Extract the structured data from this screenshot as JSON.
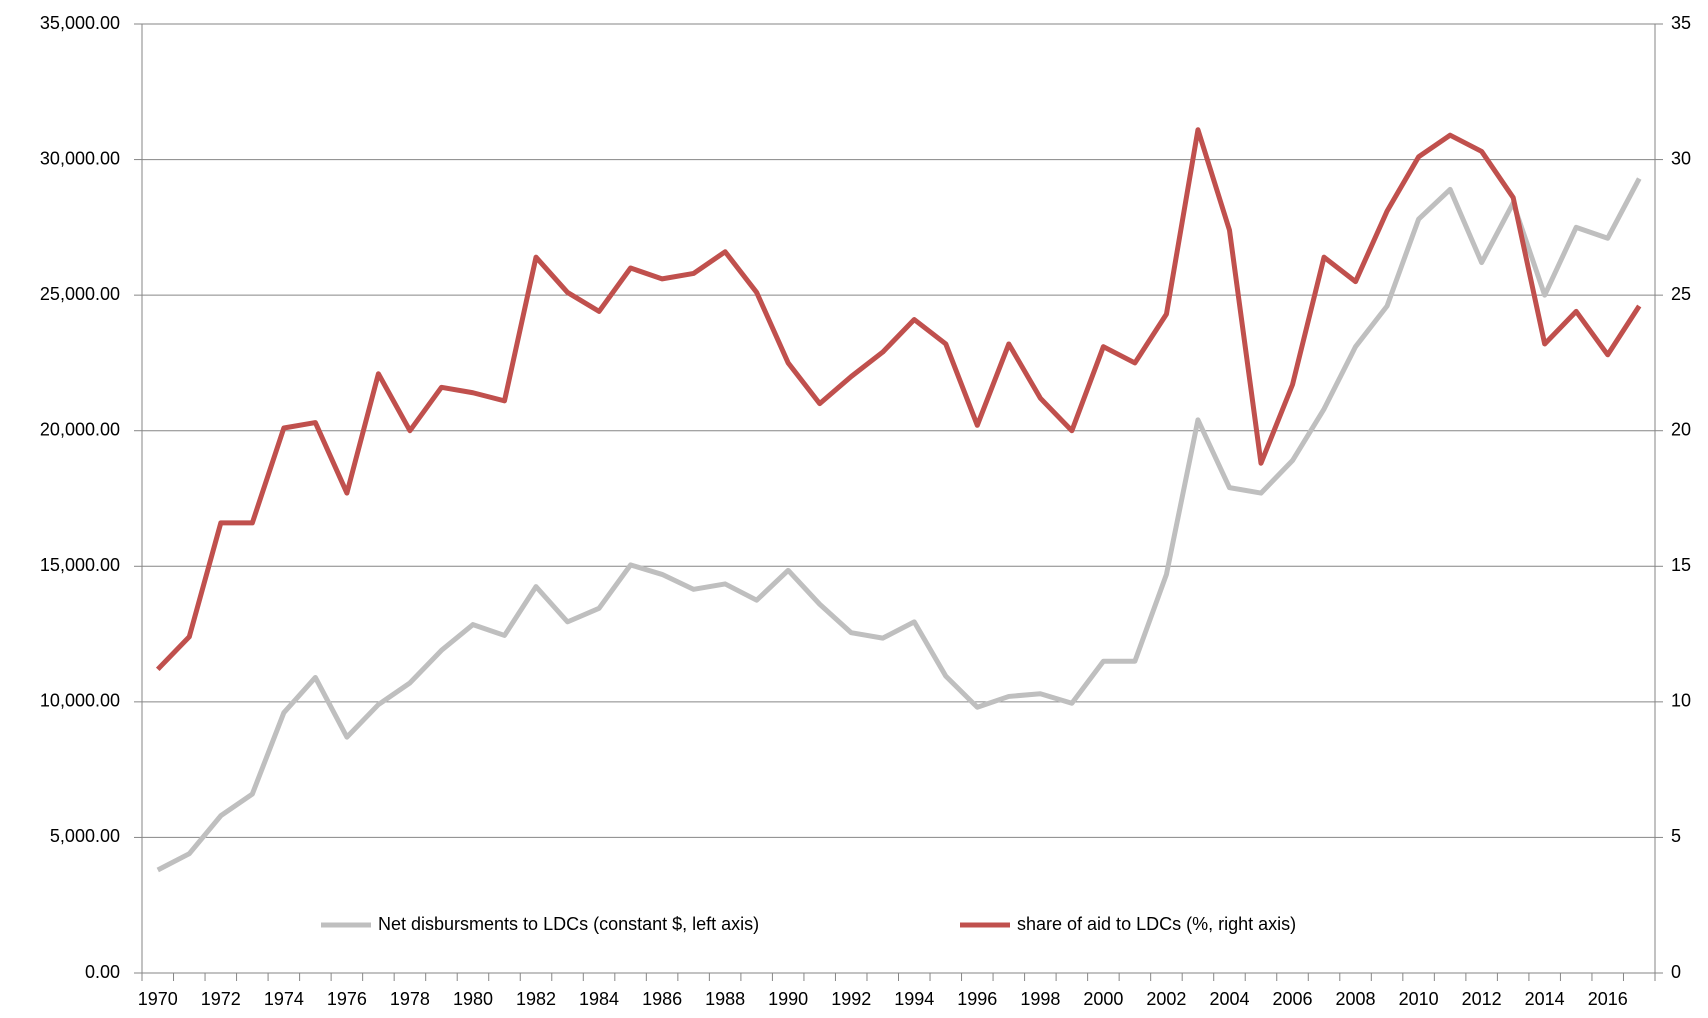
{
  "chart_data": {
    "type": "line",
    "categories": [
      "1970",
      null,
      "1972",
      null,
      "1974",
      null,
      "1976",
      null,
      "1978",
      null,
      "1980",
      null,
      "1982",
      null,
      "1984",
      null,
      "1986",
      null,
      "1988",
      null,
      "1990",
      null,
      "1992",
      null,
      "1994",
      null,
      "1996",
      null,
      "1998",
      null,
      "2000",
      null,
      "2002",
      null,
      "2004",
      null,
      "2006",
      null,
      "2008",
      null,
      "2010",
      null,
      "2012",
      null,
      "2014",
      null,
      "2016",
      null
    ],
    "series": [
      {
        "name": "Net disbursments to LDCs (constant $, left axis)",
        "color": "#bfbfbf",
        "values": [
          3800,
          4400,
          5800,
          6600,
          9600,
          10900,
          8700,
          9900,
          10700,
          11900,
          12850,
          12450,
          14250,
          12950,
          13450,
          15050,
          14700,
          14150,
          14350,
          13750,
          14850,
          13600,
          12550,
          12350,
          12950,
          10950,
          9800,
          10200,
          10300,
          9950,
          11500,
          11500,
          14700,
          20400,
          17900,
          17700,
          18900,
          20800,
          23100,
          24600,
          27800,
          28900,
          26200,
          28400,
          25000,
          27500,
          27100,
          29300
        ]
      },
      {
        "name": "share of aid to LDCs (%, right axis)",
        "color": "#c0504d",
        "axis": "y2",
        "values": [
          11.2,
          12.4,
          16.6,
          16.6,
          20.1,
          20.3,
          17.7,
          22.1,
          20.0,
          21.6,
          21.4,
          21.1,
          26.4,
          25.1,
          24.4,
          26.0,
          25.6,
          25.8,
          26.6,
          25.1,
          22.5,
          21.0,
          22.0,
          22.9,
          24.1,
          23.2,
          20.2,
          23.2,
          21.2,
          20.0,
          23.1,
          22.5,
          24.3,
          31.1,
          27.4,
          18.8,
          21.7,
          26.4,
          25.5,
          28.1,
          30.1,
          30.9,
          30.3,
          28.6,
          23.2,
          24.4,
          22.8,
          24.6
        ]
      }
    ],
    "ylim": [
      0,
      35000
    ],
    "yticks": [
      {
        "value": 0,
        "label": "0.00"
      },
      {
        "value": 5000,
        "label": "5,000.00"
      },
      {
        "value": 10000,
        "label": "10,000.00"
      },
      {
        "value": 15000,
        "label": "15,000.00"
      },
      {
        "value": 20000,
        "label": "20,000.00"
      },
      {
        "value": 25000,
        "label": "25,000.00"
      },
      {
        "value": 30000,
        "label": "30,000.00"
      },
      {
        "value": 35000,
        "label": "35,000.00"
      }
    ],
    "y2lim": [
      0,
      35
    ],
    "y2ticks": [
      0,
      5,
      10,
      15,
      20,
      25,
      30,
      35
    ],
    "grid": true,
    "legend": "bottom"
  }
}
